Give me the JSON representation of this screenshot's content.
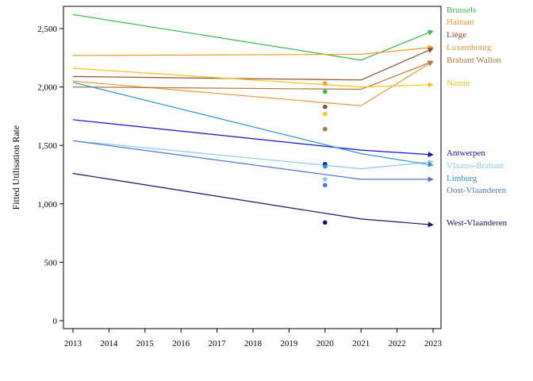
{
  "chart_data": {
    "type": "line",
    "title": "",
    "xlabel": "",
    "ylabel": "Fitted Utilisation Rate",
    "xlim": [
      2013,
      2023
    ],
    "ylim": [
      0,
      2700
    ],
    "x_ticks": [
      2013,
      2014,
      2015,
      2016,
      2017,
      2018,
      2019,
      2020,
      2021,
      2022,
      2023
    ],
    "y_ticks": [
      0,
      500,
      1000,
      1500,
      2000,
      2500
    ],
    "y_tick_labels": [
      "0",
      "500",
      "1,000",
      "1,500",
      "2,000",
      "2,500"
    ],
    "grid": false,
    "legend": "labels at right end of lines",
    "x": [
      2013,
      2021,
      2023
    ],
    "series": [
      {
        "name": "Brussels",
        "color": "#3cb54a",
        "values": [
          2620,
          2230,
          2480
        ],
        "point_2020": 1960
      },
      {
        "name": "Hainaut",
        "color": "#f29a1e",
        "values": [
          2270,
          2280,
          2340
        ],
        "point_2020": 2030
      },
      {
        "name": "Liège",
        "color": "#8b4a2b",
        "values": [
          2090,
          2060,
          2330
        ],
        "point_2020": 1830
      },
      {
        "name": "Luxembourg",
        "color": "#e59a3a",
        "values": [
          2050,
          1840,
          2220
        ],
        "point_2020": 1640
      },
      {
        "name": "Brabant Wallon",
        "color": "#b8733a",
        "values": [
          2000,
          1980,
          2220
        ],
        "point_2020": 1640
      },
      {
        "name": "Namur",
        "color": "#f5c518",
        "values": [
          2160,
          2000,
          2020
        ],
        "point_2020": 1770
      },
      {
        "name": "Antwerpen",
        "color": "#1010c8",
        "values": [
          1720,
          1460,
          1420
        ],
        "point_2020": 1340
      },
      {
        "name": "Vlaams-Brabant",
        "color": "#8ec8f0",
        "values": [
          1540,
          1300,
          1360
        ],
        "point_2020": 1210
      },
      {
        "name": "Limburg",
        "color": "#2c8fe0",
        "values": [
          2040,
          1430,
          1330
        ],
        "point_2020": 1320
      },
      {
        "name": "Oost-Vlaanderen",
        "color": "#4a78d0",
        "values": [
          1540,
          1210,
          1210
        ],
        "point_2020": 1160
      },
      {
        "name": "West-Vlaanderen",
        "color": "#10106e",
        "values": [
          1260,
          870,
          820
        ],
        "point_2020": 840
      }
    ]
  }
}
